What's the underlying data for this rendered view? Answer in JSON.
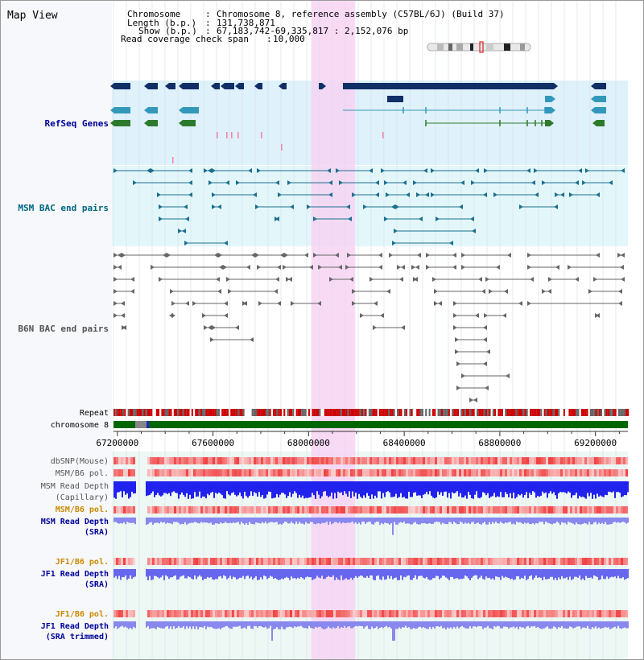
{
  "window_title": "Map View",
  "header": {
    "chromosome_label": "Chromosome",
    "chromosome_value": "Chromosome 8, reference assembly (C57BL/6J) (Build 37)",
    "length_label": "Length (b.p.)",
    "length_value": "131,738,871",
    "show_label": "Show (b.p.)",
    "show_value": "67,183,742-69,335,817 : 2,152,076 bp",
    "coverage_label": "Read coverage check span",
    "coverage_value": "10,000",
    "separator": ":"
  },
  "tracks": {
    "refseq": "RefSeq Genes",
    "msm_bac": "MSM BAC end pairs",
    "b6n_bac": "B6N BAC end pairs",
    "repeat": "Repeat",
    "chromosome": "chromosome 8",
    "dbsnp": "dbSNP(Mouse)",
    "msm_b6_pol_1": "MSM/B6 pol.",
    "msm_depth_cap_1": "MSM Read Depth",
    "msm_depth_cap_2": "(Capillary)",
    "msm_b6_pol_2": "MSM/B6 pol.",
    "msm_depth_sra_1": "MSM Read Depth",
    "msm_depth_sra_2": "(SRA)",
    "jf1_b6_pol_1": "JF1/B6 pol.",
    "jf1_depth_sra_1": "JF1 Read Depth",
    "jf1_depth_sra_2": "(SRA)",
    "jf1_b6_pol_2": "JF1/B6 pol.",
    "jf1_depth_trim_1": "JF1 Read Depth",
    "jf1_depth_trim_2": "(SRA trimmed)"
  },
  "axis": {
    "ticks": [
      "67200000",
      "67600000",
      "68000000",
      "68400000",
      "68800000",
      "69200000"
    ],
    "tick_values": [
      67200000,
      67600000,
      68000000,
      68400000,
      68800000,
      69200000
    ],
    "range": [
      67183742,
      69335817
    ]
  },
  "highlight_region": [
    68011000,
    68195000
  ],
  "colors": {
    "track_label_blue": "#000099",
    "track_label_teal": "#006680",
    "track_label_gray": "#555555",
    "track_label_orange": "#cc8800",
    "refseq_bg": "#dff1fb",
    "msm_bac_bg": "#e3f7fb",
    "highlight": "#f7d4f3",
    "gene_dark": "#0f2f66",
    "gene_blue": "#3399bb",
    "gene_green": "#2d7a2d",
    "depth_blue": "#2222ee",
    "depth_light": "#8888ee",
    "chromosome_green": "#006600"
  }
}
